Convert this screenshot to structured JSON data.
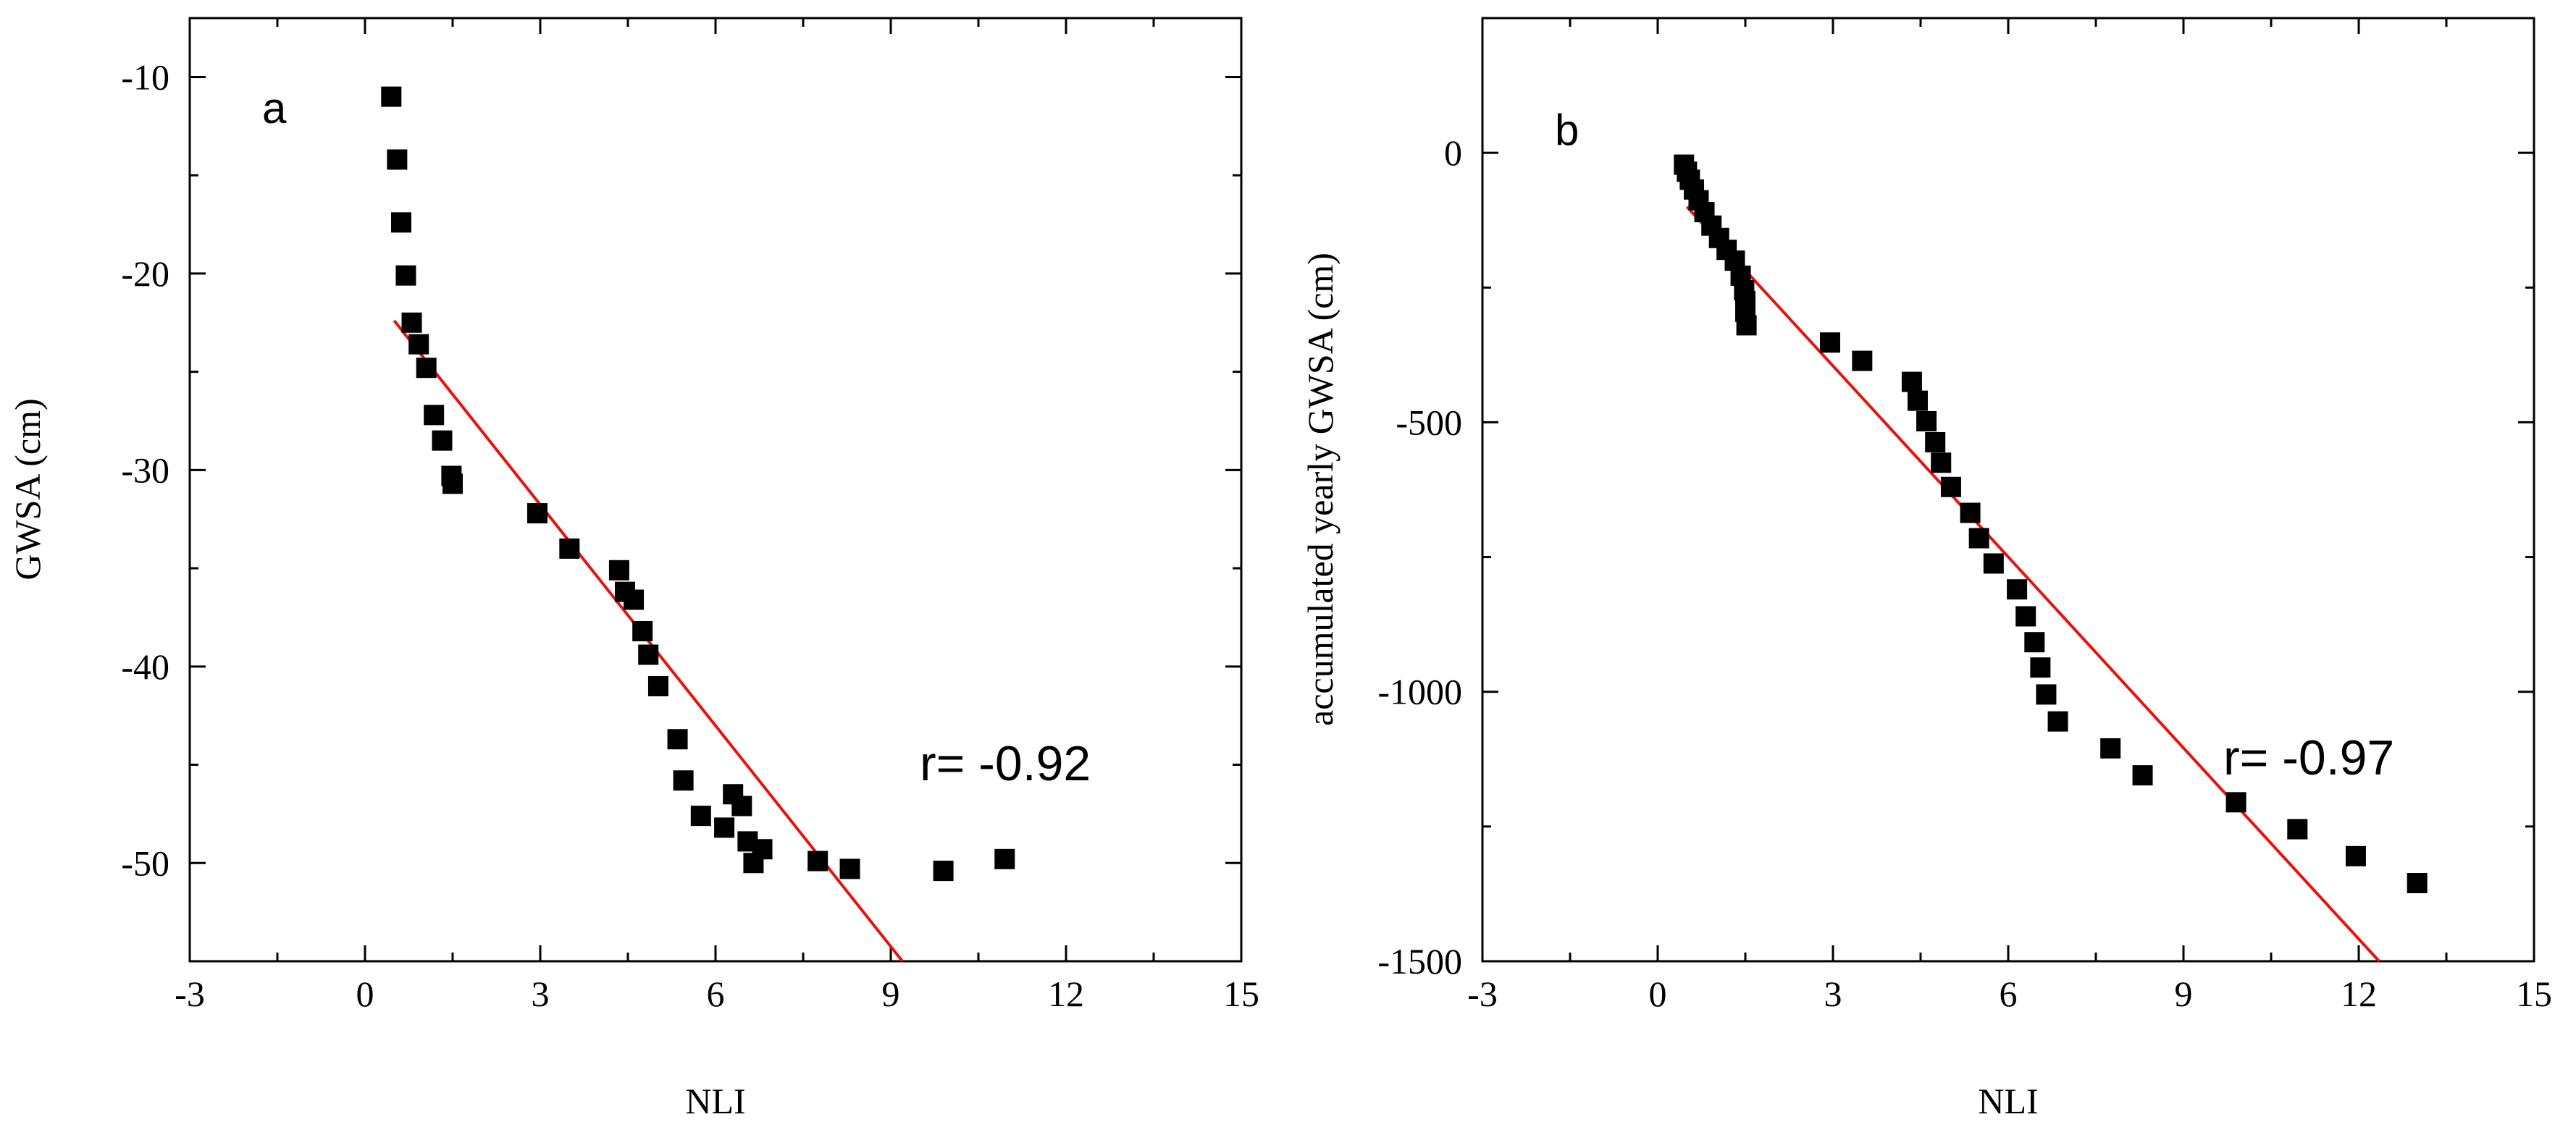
{
  "chart_data": [
    {
      "type": "scatter",
      "panel_label": "a",
      "xlabel": "NLI",
      "ylabel": "GWSA (cm)",
      "xlim": [
        -3,
        15
      ],
      "ylim": [
        -55,
        -7
      ],
      "xticks": [
        -3,
        0,
        3,
        6,
        9,
        12,
        15
      ],
      "yticks": [
        -50,
        -40,
        -30,
        -20,
        -10
      ],
      "annotation": "r= -0.92",
      "marker_color": "#000000",
      "fit_color": "#e8120c",
      "points": [
        [
          0.45,
          -11.0
        ],
        [
          0.55,
          -14.2
        ],
        [
          0.62,
          -17.4
        ],
        [
          0.7,
          -20.1
        ],
        [
          0.8,
          -22.5
        ],
        [
          0.92,
          -23.6
        ],
        [
          1.05,
          -24.8
        ],
        [
          1.18,
          -27.2
        ],
        [
          1.32,
          -28.5
        ],
        [
          1.48,
          -30.3
        ],
        [
          1.5,
          -30.7
        ],
        [
          2.95,
          -32.2
        ],
        [
          3.5,
          -34.0
        ],
        [
          4.35,
          -35.1
        ],
        [
          4.45,
          -36.2
        ],
        [
          4.6,
          -36.6
        ],
        [
          4.75,
          -38.2
        ],
        [
          4.85,
          -39.4
        ],
        [
          5.02,
          -41.0
        ],
        [
          5.35,
          -43.7
        ],
        [
          5.45,
          -45.8
        ],
        [
          5.75,
          -47.6
        ],
        [
          6.15,
          -48.2
        ],
        [
          6.3,
          -46.5
        ],
        [
          6.45,
          -47.1
        ],
        [
          6.55,
          -48.9
        ],
        [
          6.65,
          -50.0
        ],
        [
          6.8,
          -49.3
        ],
        [
          7.75,
          -49.9
        ],
        [
          8.3,
          -50.3
        ],
        [
          9.9,
          -50.4
        ],
        [
          10.95,
          -49.8
        ]
      ],
      "fit": {
        "x1": 0.5,
        "y1": -22.4,
        "x2": 9.2,
        "y2": -55
      }
    },
    {
      "type": "scatter",
      "panel_label": "b",
      "xlabel": "NLI",
      "ylabel": "accumulated yearly GWSA (cm)",
      "xlim": [
        -3,
        15
      ],
      "ylim": [
        -1500,
        250
      ],
      "xticks": [
        -3,
        0,
        3,
        6,
        9,
        12,
        15
      ],
      "yticks": [
        -1500,
        -1000,
        -500,
        0
      ],
      "annotation": "r= -0.97",
      "marker_color": "#000000",
      "fit_color": "#e8120c",
      "points": [
        [
          0.45,
          -22
        ],
        [
          0.5,
          -35
        ],
        [
          0.55,
          -50
        ],
        [
          0.62,
          -68
        ],
        [
          0.7,
          -88
        ],
        [
          0.8,
          -110
        ],
        [
          0.92,
          -135
        ],
        [
          1.05,
          -158
        ],
        [
          1.18,
          -180
        ],
        [
          1.32,
          -200
        ],
        [
          1.42,
          -228
        ],
        [
          1.48,
          -255
        ],
        [
          1.5,
          -275
        ],
        [
          1.5,
          -295
        ],
        [
          1.52,
          -320
        ],
        [
          2.95,
          -352
        ],
        [
          3.5,
          -386
        ],
        [
          4.35,
          -425
        ],
        [
          4.45,
          -460
        ],
        [
          4.6,
          -498
        ],
        [
          4.75,
          -537
        ],
        [
          4.85,
          -575
        ],
        [
          5.02,
          -620
        ],
        [
          5.35,
          -668
        ],
        [
          5.5,
          -715
        ],
        [
          5.75,
          -762
        ],
        [
          6.15,
          -810
        ],
        [
          6.3,
          -860
        ],
        [
          6.45,
          -908
        ],
        [
          6.55,
          -955
        ],
        [
          6.65,
          -1005
        ],
        [
          6.85,
          -1055
        ],
        [
          7.75,
          -1105
        ],
        [
          8.3,
          -1155
        ],
        [
          9.9,
          -1205
        ],
        [
          10.95,
          -1255
        ],
        [
          11.95,
          -1305
        ],
        [
          13.0,
          -1355
        ]
      ],
      "fit": {
        "x1": 0.5,
        "y1": -100,
        "x2": 12.35,
        "y2": -1500
      }
    }
  ]
}
